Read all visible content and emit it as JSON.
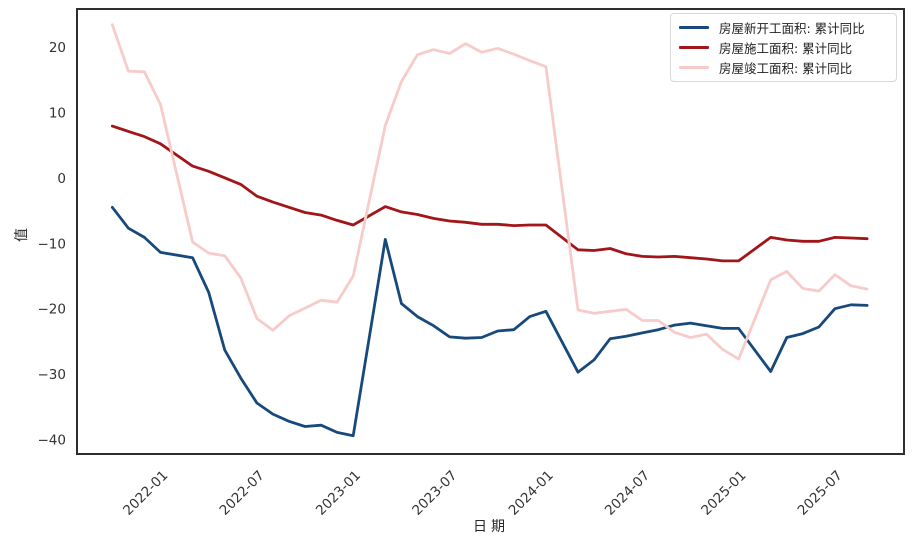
{
  "chart_data": {
    "type": "line",
    "title": "",
    "xlabel": "日期",
    "ylabel": "值",
    "grid": false,
    "legend_position": "upper right",
    "ylim": [
      -42.2,
      25.8
    ],
    "yticks": [
      20,
      10,
      0,
      -10,
      -20,
      -30,
      -40
    ],
    "xticks": [
      "2022-01",
      "2022-07",
      "2023-01",
      "2023-07",
      "2024-01",
      "2024-07",
      "2025-01",
      "2025-07"
    ],
    "x_dates": [
      "2021-09",
      "2021-10",
      "2021-11",
      "2021-12",
      "2022-02",
      "2022-03",
      "2022-04",
      "2022-05",
      "2022-06",
      "2022-07",
      "2022-08",
      "2022-09",
      "2022-10",
      "2022-11",
      "2022-12",
      "2023-02",
      "2023-03",
      "2023-04",
      "2023-05",
      "2023-06",
      "2023-07",
      "2023-08",
      "2023-09",
      "2023-10",
      "2023-11",
      "2023-12",
      "2024-02",
      "2024-03",
      "2024-04",
      "2024-05",
      "2024-06",
      "2024-07",
      "2024-08",
      "2024-09",
      "2024-10",
      "2024-11",
      "2024-12",
      "2025-02",
      "2025-03",
      "2025-04",
      "2025-05",
      "2025-06",
      "2025-07",
      "2025-08"
    ],
    "series": [
      {
        "name": "房屋新开工面积: 累计同比",
        "color": "#17497B",
        "values": [
          -4.5,
          -7.7,
          -9.1,
          -11.4,
          -12.2,
          -17.5,
          -26.3,
          -30.6,
          -34.4,
          -36.1,
          -37.2,
          -38.0,
          -37.8,
          -38.9,
          -39.4,
          -9.4,
          -19.2,
          -21.2,
          -22.6,
          -24.3,
          -24.5,
          -24.4,
          -23.4,
          -23.2,
          -21.2,
          -20.4,
          -29.7,
          -27.8,
          -24.6,
          -24.2,
          -23.7,
          -23.2,
          -22.5,
          -22.2,
          -22.6,
          -23.0,
          -23.0,
          -29.6,
          -24.4,
          -23.8,
          -22.8,
          -20.0,
          -19.4,
          -19.5
        ]
      },
      {
        "name": "房屋施工面积: 累计同比",
        "color": "#A21519",
        "values": [
          7.9,
          7.1,
          6.3,
          5.2,
          1.8,
          1.0,
          0.0,
          -1.0,
          -2.8,
          -3.7,
          -4.5,
          -5.3,
          -5.7,
          -6.5,
          -7.2,
          -4.4,
          -5.2,
          -5.6,
          -6.2,
          -6.6,
          -6.8,
          -7.1,
          -7.1,
          -7.3,
          -7.2,
          -7.2,
          -11.0,
          -11.1,
          -10.8,
          -11.6,
          -12.0,
          -12.1,
          -12.0,
          -12.2,
          -12.4,
          -12.7,
          -12.7,
          -9.1,
          -9.5,
          -9.7,
          -9.7,
          -9.1,
          -9.2,
          -9.3
        ]
      },
      {
        "name": "房屋竣工面积: 累计同比",
        "color": "#F8CBCB",
        "values": [
          23.4,
          16.3,
          16.2,
          11.2,
          -9.8,
          -11.5,
          -11.9,
          -15.3,
          -21.5,
          -23.3,
          -21.1,
          -19.9,
          -18.7,
          -19.0,
          -15.0,
          8.0,
          14.7,
          18.8,
          19.6,
          19.0,
          20.5,
          19.2,
          19.8,
          18.9,
          17.9,
          17.0,
          -20.2,
          -20.7,
          -20.4,
          -20.1,
          -21.8,
          -21.8,
          -23.6,
          -24.4,
          -23.9,
          -26.2,
          -27.7,
          -15.6,
          -14.3,
          -16.9,
          -17.3,
          -14.8,
          -16.5,
          -17.0
        ]
      }
    ],
    "axis_color": "#2e2e2e",
    "tick_label_color": "#333333"
  }
}
